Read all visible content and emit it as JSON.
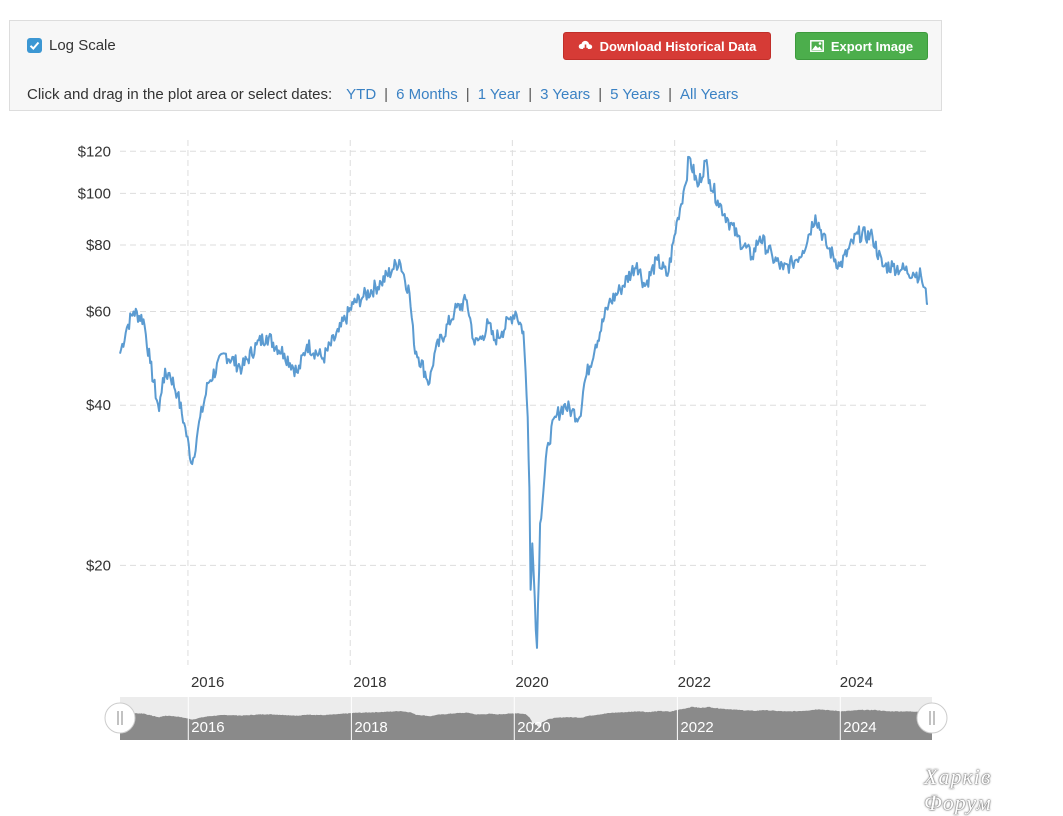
{
  "toolbar": {
    "log_scale_label": "Log Scale",
    "log_scale_checked": true,
    "download_label": "Download Historical Data",
    "export_label": "Export Image",
    "date_prompt": "Click and drag in the plot area or select dates:",
    "ranges": [
      "YTD",
      "6 Months",
      "1 Year",
      "3 Years",
      "5 Years",
      "All Years"
    ],
    "separator": "|"
  },
  "colors": {
    "line": "#5b9bd1",
    "download": "#d63b36",
    "export": "#4cae4c",
    "link": "#3b82c4",
    "navigator_fill": "#8a8a8a"
  },
  "chart_data": {
    "type": "line",
    "title": "",
    "xlabel": "",
    "ylabel": "",
    "y_scale": "log",
    "ylim": [
      13,
      126
    ],
    "xlim": [
      "2015-03-01",
      "2025-02-15"
    ],
    "grid": true,
    "y_ticks": [
      20,
      40,
      60,
      80,
      100,
      120
    ],
    "y_tick_labels": [
      "$20",
      "$40",
      "$60",
      "$80",
      "$100",
      "$120"
    ],
    "x_tick_labels": [
      "2016",
      "2018",
      "2020",
      "2022",
      "2024"
    ],
    "x_tick_dates": [
      "2016-01-01",
      "2018-01-01",
      "2020-01-01",
      "2022-01-01",
      "2024-01-01"
    ],
    "series": [
      {
        "name": "",
        "x": [
          "2015-03-01",
          "2015-04-01",
          "2015-05-01",
          "2015-06-15",
          "2015-07-15",
          "2015-08-24",
          "2015-09-10",
          "2015-10-10",
          "2015-11-15",
          "2015-12-15",
          "2016-01-20",
          "2016-02-15",
          "2016-04-01",
          "2016-06-15",
          "2016-09-01",
          "2016-11-05",
          "2016-12-20",
          "2017-03-10",
          "2017-05-10",
          "2017-06-20",
          "2017-09-01",
          "2017-11-10",
          "2018-01-15",
          "2018-03-01",
          "2018-05-20",
          "2018-07-10",
          "2018-08-10",
          "2018-09-25",
          "2018-10-15",
          "2018-12-24",
          "2019-01-15",
          "2019-04-15",
          "2019-06-10",
          "2019-07-15",
          "2019-08-20",
          "2019-09-15",
          "2019-10-10",
          "2019-11-15",
          "2019-12-20",
          "2020-01-15",
          "2020-02-20",
          "2020-03-10",
          "2020-03-18",
          "2020-03-23",
          "2020-03-31",
          "2020-04-21",
          "2020-05-05",
          "2020-06-10",
          "2020-07-15",
          "2020-08-20",
          "2020-09-25",
          "2020-10-30",
          "2020-11-20",
          "2021-01-10",
          "2021-03-10",
          "2021-05-01",
          "2021-07-15",
          "2021-08-20",
          "2021-10-15",
          "2021-11-30",
          "2022-01-15",
          "2022-02-15",
          "2022-03-08",
          "2022-04-15",
          "2022-05-20",
          "2022-06-08",
          "2022-07-14",
          "2022-08-25",
          "2022-10-10",
          "2022-12-15",
          "2023-01-20",
          "2023-03-17",
          "2023-05-05",
          "2023-06-15",
          "2023-08-01",
          "2023-09-27",
          "2023-11-15",
          "2024-01-15",
          "2024-04-05",
          "2024-06-10",
          "2024-07-25",
          "2024-09-10",
          "2024-10-20",
          "2024-12-10",
          "2025-01-15",
          "2025-02-15"
        ],
        "y": [
          50,
          56,
          60,
          58,
          48,
          39,
          45,
          46,
          42,
          37,
          31,
          36,
          44,
          50,
          47,
          52,
          54,
          50,
          46,
          52,
          49,
          55,
          62,
          64,
          68,
          72,
          75,
          65,
          52,
          44,
          50,
          60,
          63,
          52,
          54,
          57,
          53,
          55,
          58,
          60,
          55,
          38,
          28,
          18,
          22,
          14,
          24,
          34,
          38,
          40,
          39,
          38,
          44,
          52,
          62,
          66,
          74,
          67,
          75,
          70,
          90,
          103,
          117,
          103,
          115,
          106,
          97,
          90,
          83,
          76,
          83,
          76,
          72,
          74,
          78,
          91,
          80,
          73,
          84,
          83,
          73,
          73,
          72,
          71,
          70,
          62
        ]
      }
    ]
  }
}
